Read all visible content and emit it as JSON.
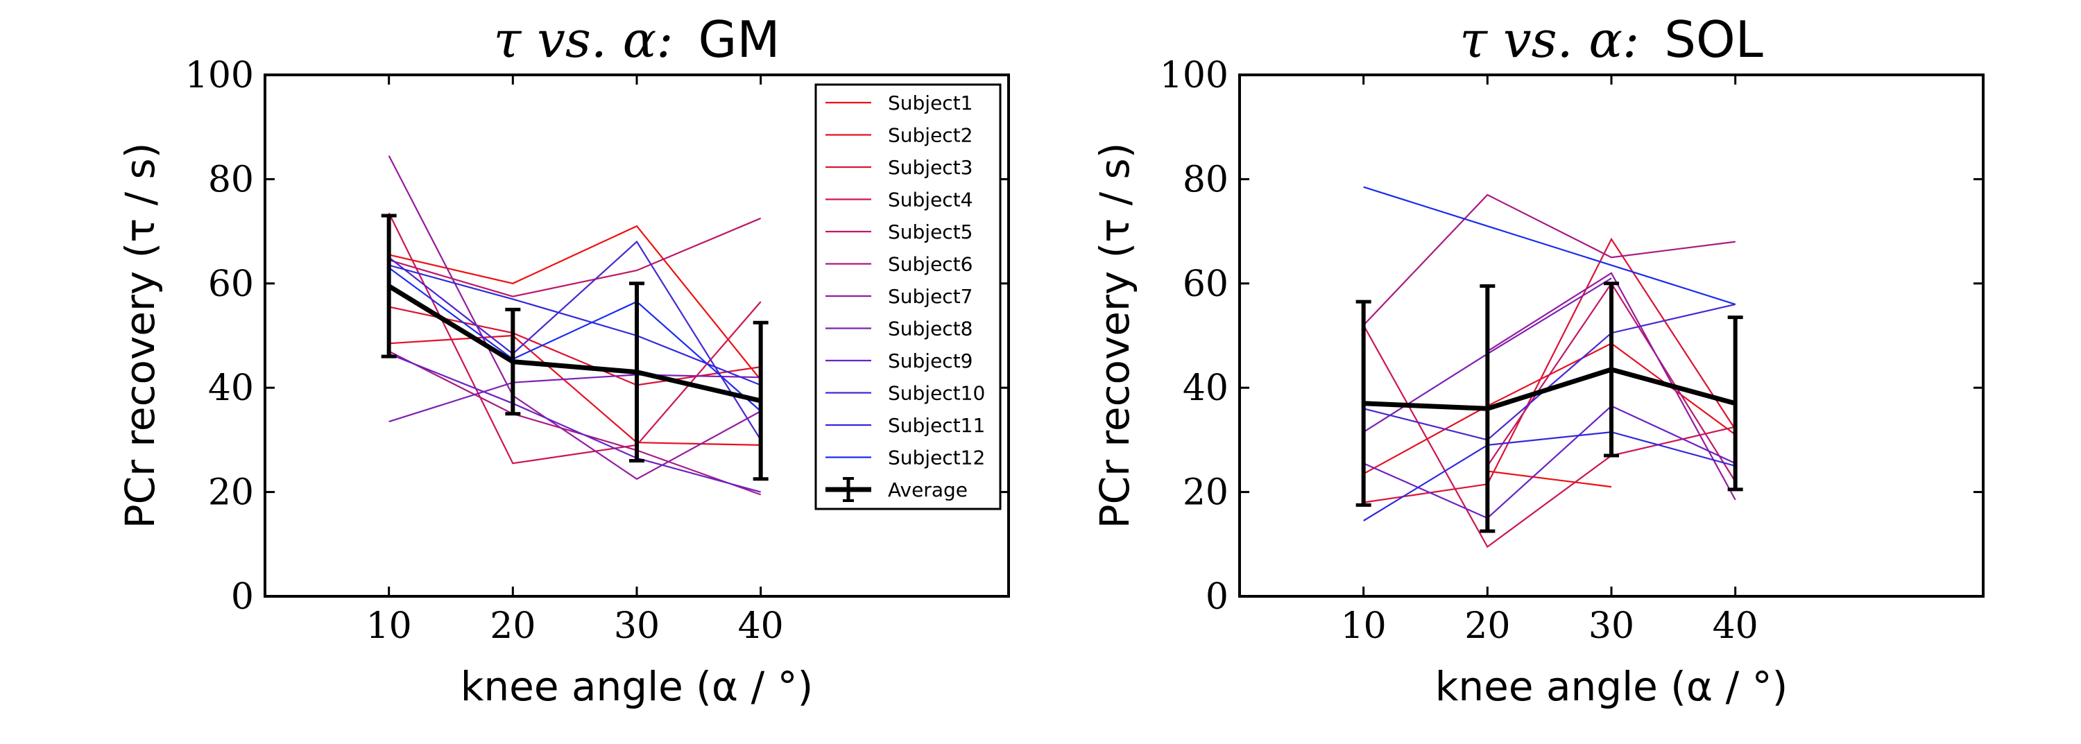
{
  "chart_data": [
    {
      "id": "gm",
      "type": "line",
      "title": "τ vs. α: GM",
      "title_math": "τ vs. α:",
      "title_muscle": "GM",
      "xlabel": "knee angle (α / °)",
      "ylabel": "PCr recovery (τ / s)",
      "xlim": [
        0,
        60
      ],
      "ylim": [
        0,
        100
      ],
      "xticks": [
        10,
        20,
        30,
        40
      ],
      "yticks": [
        0,
        20,
        40,
        60,
        80,
        100
      ],
      "legend_position": "top-right",
      "series": [
        {
          "name": "Subject1",
          "color": "#ee1010",
          "x": [
            10,
            20,
            30,
            40
          ],
          "y": [
            65.5,
            60.0,
            71.0,
            41.5
          ]
        },
        {
          "name": "Subject2",
          "color": "#e51222",
          "x": [
            10,
            20,
            30,
            40
          ],
          "y": [
            48.5,
            50.0,
            29.5,
            29.0
          ]
        },
        {
          "name": "Subject3",
          "color": "#da1434",
          "x": [
            10,
            20,
            30,
            40
          ],
          "y": [
            55.5,
            50.5,
            40.5,
            44.0
          ]
        },
        {
          "name": "Subject4",
          "color": "#cc1650",
          "x": [
            10,
            20,
            30,
            40
          ],
          "y": [
            73.5,
            25.5,
            29.0,
            56.5
          ]
        },
        {
          "name": "Subject5",
          "color": "#bd1868",
          "x": [
            10,
            20,
            30,
            40
          ],
          "y": [
            64.5,
            57.5,
            62.5,
            72.5
          ]
        },
        {
          "name": "Subject6",
          "color": "#a91a82",
          "x": [
            10,
            20,
            30,
            40
          ],
          "y": [
            47.0,
            35.0,
            28.0,
            19.5
          ]
        },
        {
          "name": "Subject7",
          "color": "#951c9e",
          "x": [
            10,
            20,
            30,
            40
          ],
          "y": [
            84.5,
            38.5,
            22.5,
            35.5
          ]
        },
        {
          "name": "Subject8",
          "color": "#7e20b4",
          "x": [
            10,
            20,
            30,
            40
          ],
          "y": [
            33.5,
            41.0,
            42.5,
            42.0
          ]
        },
        {
          "name": "Subject9",
          "color": "#6a22c4",
          "x": [
            10,
            20,
            30,
            40
          ],
          "y": [
            46.5,
            37.0,
            26.5,
            20.0
          ]
        },
        {
          "name": "Subject10",
          "color": "#4a26d2",
          "x": [
            10,
            20,
            30,
            40
          ],
          "y": [
            65.0,
            46.5,
            68.0,
            30.0
          ]
        },
        {
          "name": "Subject11",
          "color": "#3228de",
          "x": [
            10,
            20,
            30,
            40
          ],
          "y": [
            63.5,
            57.0,
            50.0,
            40.5
          ]
        },
        {
          "name": "Subject12",
          "color": "#1a2cf0",
          "x": [
            10,
            20,
            30,
            40
          ],
          "y": [
            63.0,
            45.5,
            56.5,
            35.5
          ]
        }
      ],
      "average": {
        "name": "Average",
        "x": [
          10,
          20,
          30,
          40
        ],
        "y": [
          59.5,
          45.0,
          43.0,
          37.5
        ],
        "err": [
          13.5,
          10.0,
          17.0,
          15.0
        ]
      }
    },
    {
      "id": "sol",
      "type": "line",
      "title": "τ vs. α: SOL",
      "title_math": "τ vs. α:",
      "title_muscle": "SOL",
      "xlabel": "knee angle (α / °)",
      "ylabel": "PCr recovery (τ / s)",
      "xlim": [
        0,
        60
      ],
      "ylim": [
        0,
        100
      ],
      "xticks": [
        10,
        20,
        30,
        40
      ],
      "yticks": [
        0,
        20,
        40,
        60,
        80,
        100
      ],
      "series": [
        {
          "name": "Subject1",
          "color": "#ee1010",
          "x": [
            20,
            30
          ],
          "y": [
            24.0,
            21.0
          ]
        },
        {
          "name": "Subject2",
          "color": "#e51222",
          "x": [
            10,
            20,
            30,
            40
          ],
          "y": [
            23.5,
            36.5,
            48.5,
            31.0
          ]
        },
        {
          "name": "Subject3",
          "color": "#da1434",
          "x": [
            10,
            20,
            30,
            40
          ],
          "y": [
            18.0,
            21.5,
            68.5,
            32.0
          ]
        },
        {
          "name": "Subject4",
          "color": "#cc1650",
          "x": [
            10,
            20,
            30,
            40
          ],
          "y": [
            52.0,
            9.5,
            27.0,
            32.5
          ]
        },
        {
          "name": "Subject5",
          "color": "#bd1868",
          "x": [
            20,
            30,
            40
          ],
          "y": [
            25.0,
            60.0,
            22.0
          ]
        },
        {
          "name": "Subject6",
          "color": "#a91a82",
          "x": [
            10,
            20,
            30,
            40
          ],
          "y": [
            52.0,
            77.0,
            65.0,
            68.0
          ]
        },
        {
          "name": "Subject7",
          "color": "#951c9e",
          "x": [
            20,
            30,
            40
          ],
          "y": [
            47.0,
            62.0,
            18.5
          ]
        },
        {
          "name": "Subject8",
          "color": "#7e20b4",
          "x": [
            10,
            20,
            30
          ],
          "y": [
            31.5,
            46.5,
            61.0
          ]
        },
        {
          "name": "Subject9",
          "color": "#6a22c4",
          "x": [
            10,
            20,
            30,
            40
          ],
          "y": [
            25.5,
            15.0,
            36.5,
            25.5
          ]
        },
        {
          "name": "Subject10",
          "color": "#4a26d2",
          "x": [
            10,
            20,
            30,
            40
          ],
          "y": [
            36.0,
            30.0,
            50.5,
            56.0
          ]
        },
        {
          "name": "Subject11",
          "color": "#3228de",
          "x": [
            10,
            20,
            30,
            40
          ],
          "y": [
            14.5,
            29.0,
            31.5,
            25.0
          ]
        },
        {
          "name": "Subject12",
          "color": "#1a2cf0",
          "x": [
            10,
            40
          ],
          "y": [
            78.5,
            56.0
          ]
        }
      ],
      "average": {
        "name": "Average",
        "x": [
          10,
          20,
          30,
          40
        ],
        "y": [
          37.0,
          36.0,
          43.5,
          37.0
        ],
        "err": [
          19.5,
          23.5,
          16.5,
          16.5
        ]
      }
    }
  ]
}
